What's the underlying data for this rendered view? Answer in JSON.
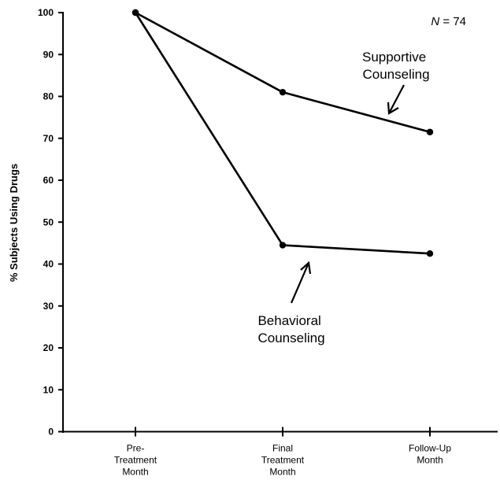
{
  "chart_data": {
    "type": "line",
    "ylabel": "% Subjects Using Drugs",
    "xlabel": "",
    "ylim": [
      0,
      100
    ],
    "y_ticks": [
      "0",
      "10",
      "20",
      "30",
      "40",
      "50",
      "60",
      "70",
      "80",
      "90",
      "100"
    ],
    "categories": [
      [
        "Pre-",
        "Treatment",
        "Month"
      ],
      [
        "Final",
        "Treatment",
        "Month"
      ],
      [
        "Follow-Up",
        "Month"
      ]
    ],
    "series": [
      {
        "name": "Supportive Counseling",
        "values": [
          100,
          81,
          71.5
        ]
      },
      {
        "name": "Behavioral Counseling",
        "values": [
          100,
          44.5,
          42.5
        ]
      }
    ],
    "annotations": {
      "supportive": [
        "Supportive",
        "Counseling"
      ],
      "behavioral": [
        "Behavioral",
        "Counseling"
      ],
      "n_var": "N",
      "n_rest": " = 74"
    },
    "grid": false,
    "legend": "none"
  }
}
